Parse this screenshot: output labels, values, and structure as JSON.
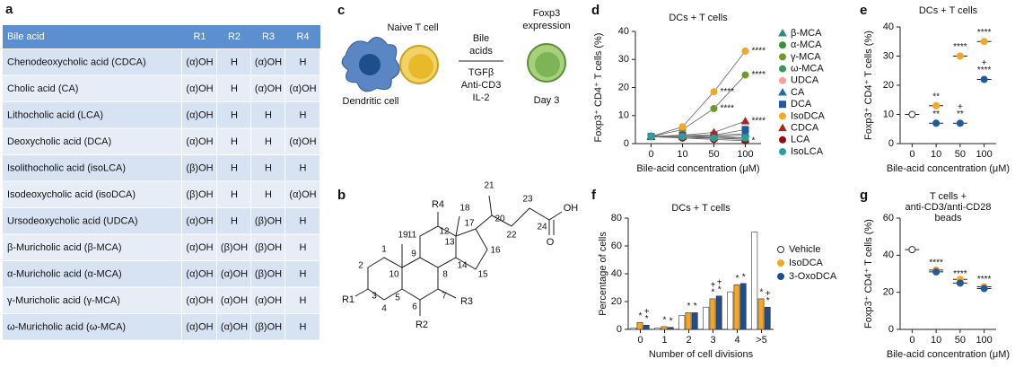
{
  "panel_labels": [
    "a",
    "b",
    "c",
    "d",
    "e",
    "f",
    "g"
  ],
  "table": {
    "header": [
      "Bile acid",
      "R1",
      "R2",
      "R3",
      "R4"
    ],
    "rows": [
      [
        "Chenodeoxycholic acid (CDCA)",
        "(α)OH",
        "H",
        "(α)OH",
        "H"
      ],
      [
        "Cholic acid (CA)",
        "(α)OH",
        "H",
        "(α)OH",
        "(α)OH"
      ],
      [
        "Lithocholic acid (LCA)",
        "(α)OH",
        "H",
        "H",
        "H"
      ],
      [
        "Deoxycholic acid (DCA)",
        "(α)OH",
        "H",
        "H",
        "(α)OH"
      ],
      [
        "Isolithocholic acid (isoLCA)",
        "(β)OH",
        "H",
        "H",
        "H"
      ],
      [
        "Isodeoxycholic acid (isoDCA)",
        "(β)OH",
        "H",
        "H",
        "(α)OH"
      ],
      [
        "Ursodeoxycholic acid (UDCA)",
        "(α)OH",
        "H",
        "(β)OH",
        "H"
      ],
      [
        "β-Muricholic acid (β-MCA)",
        "(α)OH",
        "(β)OH",
        "(β)OH",
        "H"
      ],
      [
        "α-Muricholic acid (α-MCA)",
        "(α)OH",
        "(α)OH",
        "(β)OH",
        "H"
      ],
      [
        "γ-Muricholic acid (γ-MCA)",
        "(α)OH",
        "(α)OH",
        "(α)OH",
        "H"
      ],
      [
        "ω-Muricholic acid (ω-MCA)",
        "(α)OH",
        "(α)OH",
        "(β)OH",
        "H"
      ]
    ]
  },
  "structure": {
    "atoms": [
      "1",
      "2",
      "3",
      "4",
      "5",
      "6",
      "7",
      "8",
      "9",
      "10",
      "11",
      "12",
      "13",
      "14",
      "15",
      "16",
      "17",
      "18",
      "19",
      "20",
      "21",
      "22",
      "23",
      "24"
    ],
    "substituents": [
      "R1",
      "R2",
      "R3",
      "R4"
    ],
    "groups": [
      "OH",
      "O"
    ]
  },
  "schematic": {
    "cells": [
      "Naive T cell",
      "Dendritic cell"
    ],
    "bile_acids": [
      "Bile",
      "acids"
    ],
    "conditions": [
      "TGFβ",
      "Anti-CD3",
      "IL-2"
    ],
    "readout": [
      "Foxp3",
      "expression"
    ],
    "day": "Day 3"
  },
  "chart_data": [
    {
      "type": "line",
      "title": "DCs + T cells",
      "xlabel": "Bile-acid concentration (μM)",
      "ylabel": "Foxp3⁺ CD4⁺ T cells (%)",
      "categories": [
        "0",
        "10",
        "50",
        "100"
      ],
      "ylim": [
        0,
        40
      ],
      "yticks": [
        0,
        10,
        20,
        30,
        40
      ],
      "legend": "right",
      "series": [
        {
          "name": "β-MCA",
          "color": "#2b8c6e",
          "marker": "triangle",
          "values": [
            2.5,
            2.5,
            2,
            1.5
          ]
        },
        {
          "name": "α-MCA",
          "color": "#3a8f3a",
          "marker": "circle",
          "values": [
            2.5,
            2.5,
            2.5,
            2
          ]
        },
        {
          "name": "γ-MCA",
          "color": "#6e9a2c",
          "marker": "circle",
          "values": [
            2.5,
            5,
            12.5,
            24.5
          ],
          "annotations": [
            null,
            null,
            [
              "****"
            ],
            [
              "****"
            ]
          ]
        },
        {
          "name": "ω-MCA",
          "color": "#2e9d5a",
          "marker": "circle",
          "values": [
            2.5,
            2.5,
            2.5,
            3
          ]
        },
        {
          "name": "UDCA",
          "color": "#f4a0a0",
          "marker": "circle",
          "values": [
            2.5,
            2,
            2,
            1.5
          ]
        },
        {
          "name": "CA",
          "color": "#1f6fb0",
          "marker": "triangle",
          "values": [
            2.5,
            2.5,
            3,
            3.5
          ]
        },
        {
          "name": "DCA",
          "color": "#1f5aa0",
          "marker": "square",
          "values": [
            2.5,
            3,
            3,
            5
          ]
        },
        {
          "name": "IsoDCA",
          "color": "#f5a623",
          "marker": "circle",
          "values": [
            2.5,
            6,
            18.5,
            33
          ],
          "annotations": [
            null,
            null,
            [
              "****"
            ],
            [
              "****"
            ]
          ]
        },
        {
          "name": "CDCA",
          "color": "#b22222",
          "marker": "triangle",
          "values": [
            2.5,
            3,
            4,
            8
          ],
          "annotations": [
            null,
            null,
            null,
            [
              "****"
            ]
          ]
        },
        {
          "name": "LCA",
          "color": "#8b1010",
          "marker": "circle",
          "values": [
            2.5,
            2,
            1.5,
            1
          ],
          "annotations": [
            null,
            null,
            null,
            [
              "*"
            ]
          ]
        },
        {
          "name": "IsoLCA",
          "color": "#2aa198",
          "marker": "circle",
          "values": [
            2.5,
            2.5,
            2,
            2
          ]
        }
      ]
    },
    {
      "type": "dot",
      "title": "DCs + T cells",
      "xlabel": "Bile-acid concentration (μM)",
      "ylabel": "Foxp3⁺ CD4⁺ T cells (%)",
      "categories": [
        "0",
        "10",
        "50",
        "100"
      ],
      "ylim": [
        0,
        40
      ],
      "yticks": [
        0,
        10,
        20,
        30,
        40
      ],
      "series": [
        {
          "color": "#ffffff",
          "values": [
            10,
            null,
            null,
            null
          ]
        },
        {
          "color": "#f5a623",
          "values": [
            null,
            13,
            30,
            35
          ],
          "annotations": [
            null,
            [
              "**"
            ],
            [
              "****"
            ],
            [
              "****"
            ]
          ]
        },
        {
          "color": "#1f5aa0",
          "values": [
            null,
            7,
            7,
            22
          ],
          "annotations": [
            null,
            [
              "**"
            ],
            [
              "+",
              "**"
            ],
            [
              "+",
              "****"
            ]
          ]
        }
      ]
    },
    {
      "type": "groupedbar",
      "title": "DCs + T cells",
      "xlabel": "Number of cell divisions",
      "ylabel": "Percentage of cells",
      "categories": [
        "0",
        "1",
        "2",
        "3",
        "4",
        ">5"
      ],
      "ylim": [
        0,
        80
      ],
      "yticks": [
        0,
        20,
        40,
        60,
        80
      ],
      "legend": "right",
      "series": [
        {
          "name": "Vehicle",
          "color": "#ffffff",
          "values": [
            1,
            1,
            10,
            16,
            27,
            70
          ]
        },
        {
          "name": "IsoDCA",
          "color": "#f5a623",
          "values": [
            5,
            2,
            12,
            22,
            32,
            22
          ],
          "annotations": [
            [
              "*"
            ],
            [
              "*"
            ],
            [
              "*"
            ],
            [
              "+",
              "*"
            ],
            [
              "*"
            ],
            [
              "*"
            ]
          ]
        },
        {
          "name": "3-OxoDCA",
          "color": "#1f4e8c",
          "values": [
            3,
            1.5,
            12,
            24,
            33,
            16
          ],
          "annotations": [
            [
              "+",
              "*"
            ],
            [
              "*"
            ],
            [
              "*"
            ],
            [
              "+",
              "*"
            ],
            [
              "*"
            ],
            [
              "+",
              "*"
            ]
          ]
        }
      ]
    },
    {
      "type": "dot",
      "title": [
        "T cells +",
        "anti-CD3/anti-CD28",
        "beads"
      ],
      "xlabel": "Bile-acid concentration (μM)",
      "ylabel": "Foxp3⁺ CD4⁺ T cells (%)",
      "categories": [
        "0",
        "10",
        "50",
        "100"
      ],
      "ylim": [
        0,
        60
      ],
      "yticks": [
        0,
        20,
        40,
        60
      ],
      "series": [
        {
          "color": "#ffffff",
          "values": [
            43,
            null,
            null,
            null
          ]
        },
        {
          "color": "#f5a623",
          "values": [
            null,
            32,
            27,
            23
          ]
        },
        {
          "color": "#1f5aa0",
          "values": [
            null,
            31,
            25,
            22
          ],
          "annotations": [
            null,
            [
              "****"
            ],
            [
              "****"
            ],
            [
              "****"
            ]
          ]
        }
      ]
    }
  ]
}
